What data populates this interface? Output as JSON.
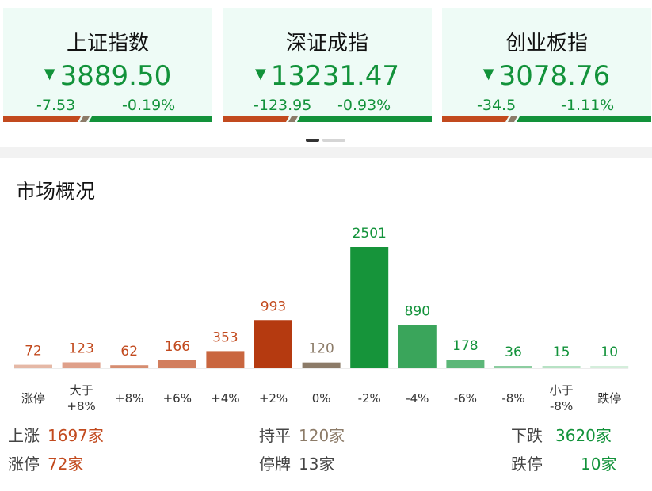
{
  "indices": [
    {
      "name": "上证指数",
      "arrow": "▼",
      "price": "3889.50",
      "change": "-7.53",
      "pct": "-0.19%"
    },
    {
      "name": "深证成指",
      "arrow": "▼",
      "price": "13231.47",
      "change": "-123.95",
      "pct": "-0.93%"
    },
    {
      "name": "创业板指",
      "arrow": "▼",
      "price": "3078.76",
      "change": "-34.5",
      "pct": "-1.11%"
    }
  ],
  "section_title": "市场概况",
  "colors": {
    "up": "#c24a1e",
    "down": "#12923a",
    "flat": "#8c7b68",
    "card_bg": "#eefbf6"
  },
  "chart_data": {
    "type": "bar",
    "categories": [
      "涨停",
      "大于\n+8%",
      "+8%",
      "+6%",
      "+4%",
      "+2%",
      "0%",
      "-2%",
      "-4%",
      "-6%",
      "-8%",
      "小于\n-8%",
      "跌停"
    ],
    "values": [
      72,
      123,
      62,
      166,
      353,
      993,
      120,
      2501,
      890,
      178,
      36,
      15,
      10
    ],
    "bar_colors": [
      "#e5b8a6",
      "#dfa08a",
      "#d68d70",
      "#d27e5e",
      "#c9663f",
      "#b53a10",
      "#8c7b68",
      "#16943a",
      "#3aa55b",
      "#5cb778",
      "#8ccda0",
      "#b7e2c4",
      "#d4eedb"
    ],
    "label_colors": [
      "#c24a1e",
      "#c24a1e",
      "#c24a1e",
      "#c24a1e",
      "#c24a1e",
      "#c24a1e",
      "#8c7b68",
      "#12923a",
      "#12923a",
      "#12923a",
      "#12923a",
      "#12923a",
      "#12923a"
    ],
    "ylim": [
      0,
      2501
    ]
  },
  "summary": {
    "up_label": "上涨",
    "up_value": "1697家",
    "limit_up_label": "涨停",
    "limit_up_value": "72家",
    "flat_label": "持平",
    "flat_value": "120家",
    "halt_label": "停牌",
    "halt_value": "13家",
    "down_label": "下跌",
    "down_value": "3620家",
    "limit_down_label": "跌停",
    "limit_down_value": "10家"
  }
}
